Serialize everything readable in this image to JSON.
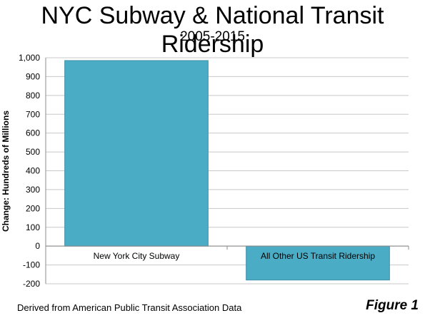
{
  "chart_data": {
    "type": "bar",
    "title": "NYC Subway & National Transit Ridership",
    "subtitle": "2005-2015",
    "ylabel": "Change: Hundreds of Millions",
    "xlabel": "",
    "categories": [
      "New York City Subway",
      "All Other US Transit Ridership"
    ],
    "values": [
      985,
      -180
    ],
    "ylim": [
      -200,
      1000
    ],
    "yticks": [
      -200,
      -100,
      0,
      100,
      200,
      300,
      400,
      500,
      600,
      700,
      800,
      900,
      1000
    ],
    "ytick_labels": [
      "-200",
      "-100",
      "0",
      "100",
      "200",
      "300",
      "400",
      "500",
      "600",
      "700",
      "800",
      "900",
      "1,000"
    ],
    "grid": true,
    "bar_color": "#4BACC6",
    "bar_edge_color": "#3C8EA6"
  },
  "footer": {
    "source": "Derived from American Public Transit Association Data",
    "figure": "Figure 1"
  }
}
